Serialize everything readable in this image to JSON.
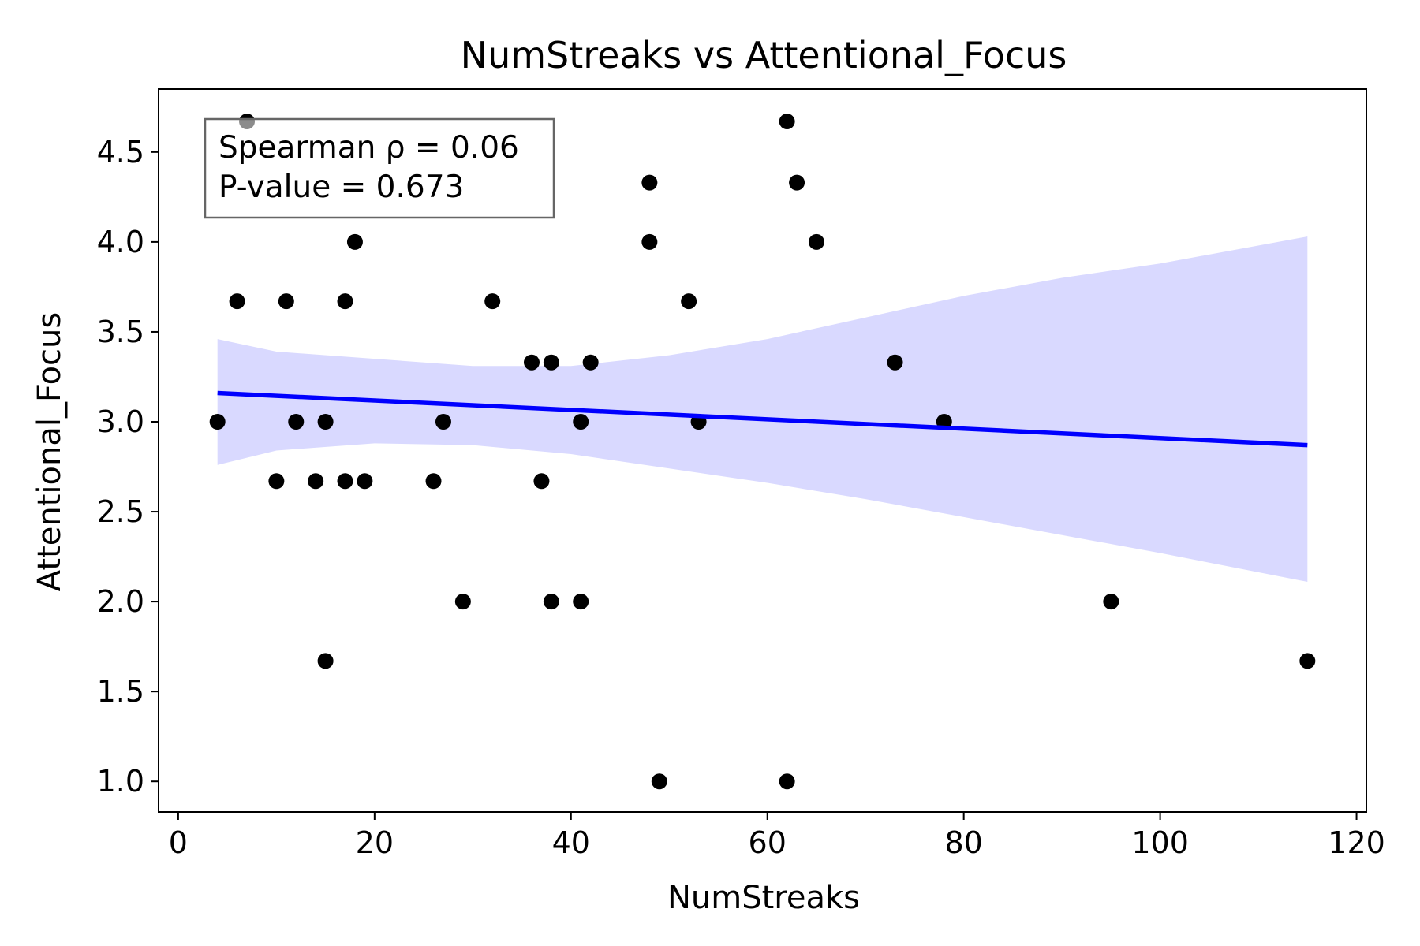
{
  "chart_data": {
    "type": "scatter",
    "title": "NumStreaks vs Attentional_Focus",
    "xlabel": "NumStreaks",
    "ylabel": "Attentional_Focus",
    "xlim": [
      -2,
      121
    ],
    "ylim": [
      0.83,
      4.85
    ],
    "xticks": [
      0,
      20,
      40,
      60,
      80,
      100,
      120
    ],
    "yticks": [
      1.0,
      1.5,
      2.0,
      2.5,
      3.0,
      3.5,
      4.0,
      4.5
    ],
    "xtick_labels": [
      "0",
      "20",
      "40",
      "60",
      "80",
      "100",
      "120"
    ],
    "ytick_labels": [
      "1.0",
      "1.5",
      "2.0",
      "2.5",
      "3.0",
      "3.5",
      "4.0",
      "4.5"
    ],
    "grid": false,
    "points": [
      [
        4,
        3.0
      ],
      [
        6,
        3.67
      ],
      [
        7,
        4.67
      ],
      [
        10,
        2.67
      ],
      [
        11,
        3.67
      ],
      [
        12,
        3.0
      ],
      [
        14,
        2.67
      ],
      [
        15,
        3.0
      ],
      [
        15,
        1.67
      ],
      [
        17,
        3.67
      ],
      [
        17,
        2.67
      ],
      [
        18,
        4.0
      ],
      [
        19,
        2.67
      ],
      [
        26,
        2.67
      ],
      [
        27,
        3.0
      ],
      [
        29,
        2.0
      ],
      [
        32,
        3.67
      ],
      [
        36,
        3.33
      ],
      [
        37,
        2.67
      ],
      [
        38,
        3.33
      ],
      [
        38,
        2.0
      ],
      [
        41,
        3.0
      ],
      [
        41,
        2.0
      ],
      [
        42,
        3.33
      ],
      [
        48,
        4.33
      ],
      [
        48,
        4.0
      ],
      [
        49,
        1.0
      ],
      [
        52,
        3.67
      ],
      [
        53,
        3.0
      ],
      [
        62,
        4.67
      ],
      [
        62,
        1.0
      ],
      [
        63,
        4.33
      ],
      [
        65,
        4.0
      ],
      [
        73,
        3.33
      ],
      [
        78,
        3.0
      ],
      [
        95,
        2.0
      ],
      [
        115,
        1.67
      ]
    ],
    "regression": {
      "x": [
        4,
        115
      ],
      "y": [
        3.16,
        2.87
      ]
    },
    "confidence_band": {
      "x": [
        4,
        10,
        20,
        30,
        40,
        50,
        60,
        70,
        80,
        90,
        100,
        115
      ],
      "lower": [
        2.76,
        2.84,
        2.88,
        2.87,
        2.82,
        2.74,
        2.66,
        2.57,
        2.47,
        2.37,
        2.27,
        2.11
      ],
      "upper": [
        3.46,
        3.39,
        3.35,
        3.31,
        3.31,
        3.37,
        3.46,
        3.58,
        3.7,
        3.8,
        3.88,
        4.03
      ]
    },
    "stats": {
      "line1": "Spearman ρ = 0.06",
      "line2": "P-value = 0.673",
      "placement": "top-left"
    },
    "colors": {
      "points": "#000000",
      "regression": "#0000ff",
      "band": "#d9d9ff",
      "stats_border": "#666666"
    }
  }
}
